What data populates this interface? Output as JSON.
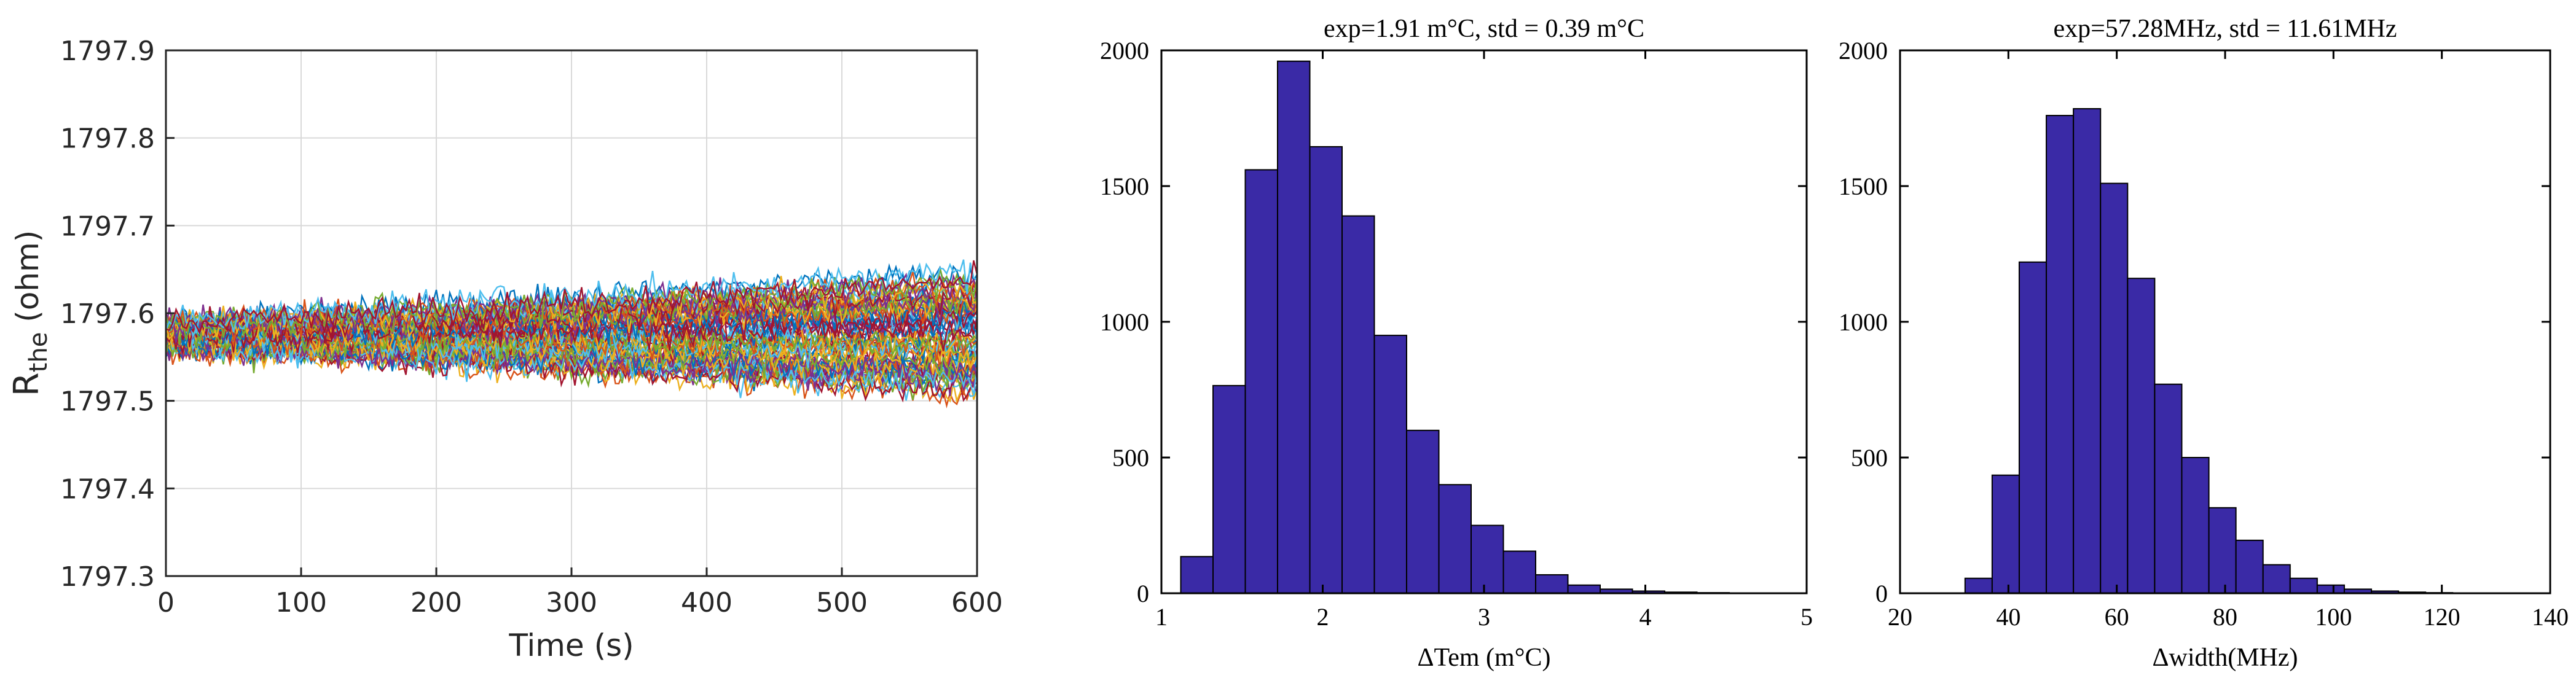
{
  "colors": {
    "background": "#ffffff",
    "axis": "#262626",
    "grid": "#d9d9d9",
    "bar_fill": "#3a2aa6",
    "bar_edge": "#000000",
    "series_palette": [
      "#0072BD",
      "#D95319",
      "#EDB120",
      "#7E2F8E",
      "#77AC30",
      "#4DBEEE",
      "#A2142F"
    ]
  },
  "chart_data": [
    {
      "type": "line",
      "title": "",
      "xlabel": "Time (s)",
      "ylabel_main": "R",
      "ylabel_sub": "the",
      "ylabel_unit": " (ohm)",
      "xlim": [
        0,
        600
      ],
      "ylim": [
        1797.3,
        1797.9
      ],
      "xticks": [
        0,
        100,
        200,
        300,
        400,
        500,
        600
      ],
      "xtick_labels": [
        "0",
        "100",
        "200",
        "300",
        "400",
        "500",
        "600"
      ],
      "yticks": [
        1797.3,
        1797.4,
        1797.5,
        1797.6,
        1797.7,
        1797.8,
        1797.9
      ],
      "ytick_labels": [
        "1797.3",
        "1797.4",
        "1797.5",
        "1797.6",
        "1797.7",
        "1797.8",
        "1797.9"
      ],
      "grid": true,
      "series_count": 70,
      "start_value": 1797.575,
      "start_spread": 0.03,
      "end_spread": 0.14,
      "noise": 0.022,
      "samples": 240
    },
    {
      "type": "bar",
      "title": "exp=1.91 m°C, std = 0.39 m°C",
      "xlabel": "ΔTem (m°C)",
      "ylabel": "",
      "xlim": [
        1,
        5
      ],
      "ylim": [
        0,
        2000
      ],
      "xticks": [
        1,
        2,
        3,
        4,
        5
      ],
      "xtick_labels": [
        "1",
        "2",
        "3",
        "4",
        "5"
      ],
      "yticks": [
        0,
        500,
        1000,
        1500,
        2000
      ],
      "ytick_labels": [
        "0",
        "500",
        "1000",
        "1500",
        "2000"
      ],
      "grid": false,
      "bin_edges": [
        1.12,
        1.32,
        1.52,
        1.72,
        1.92,
        2.12,
        2.32,
        2.52,
        2.72,
        2.92,
        3.12,
        3.32,
        3.52,
        3.72,
        3.92,
        4.12,
        4.32,
        4.52
      ],
      "values": [
        135,
        765,
        1560,
        1960,
        1645,
        1390,
        950,
        600,
        400,
        250,
        155,
        68,
        30,
        15,
        8,
        4,
        2
      ]
    },
    {
      "type": "bar",
      "title": "exp=57.28MHz, std = 11.61MHz",
      "xlabel": "Δwidth(MHz)",
      "ylabel": "",
      "xlim": [
        20,
        140
      ],
      "ylim": [
        0,
        2000
      ],
      "xticks": [
        20,
        40,
        60,
        80,
        100,
        120,
        140
      ],
      "xtick_labels": [
        "20",
        "40",
        "60",
        "80",
        "100",
        "120",
        "140"
      ],
      "yticks": [
        0,
        500,
        1000,
        1500,
        2000
      ],
      "ytick_labels": [
        "0",
        "500",
        "1000",
        "1500",
        "2000"
      ],
      "grid": false,
      "bin_edges": [
        32,
        37,
        42,
        47,
        52,
        57,
        62,
        67,
        72,
        77,
        82,
        87,
        92,
        97,
        102,
        107,
        112,
        117,
        122
      ],
      "values": [
        55,
        435,
        1220,
        1760,
        1785,
        1510,
        1160,
        770,
        500,
        315,
        195,
        105,
        55,
        30,
        15,
        8,
        4,
        2
      ]
    }
  ]
}
